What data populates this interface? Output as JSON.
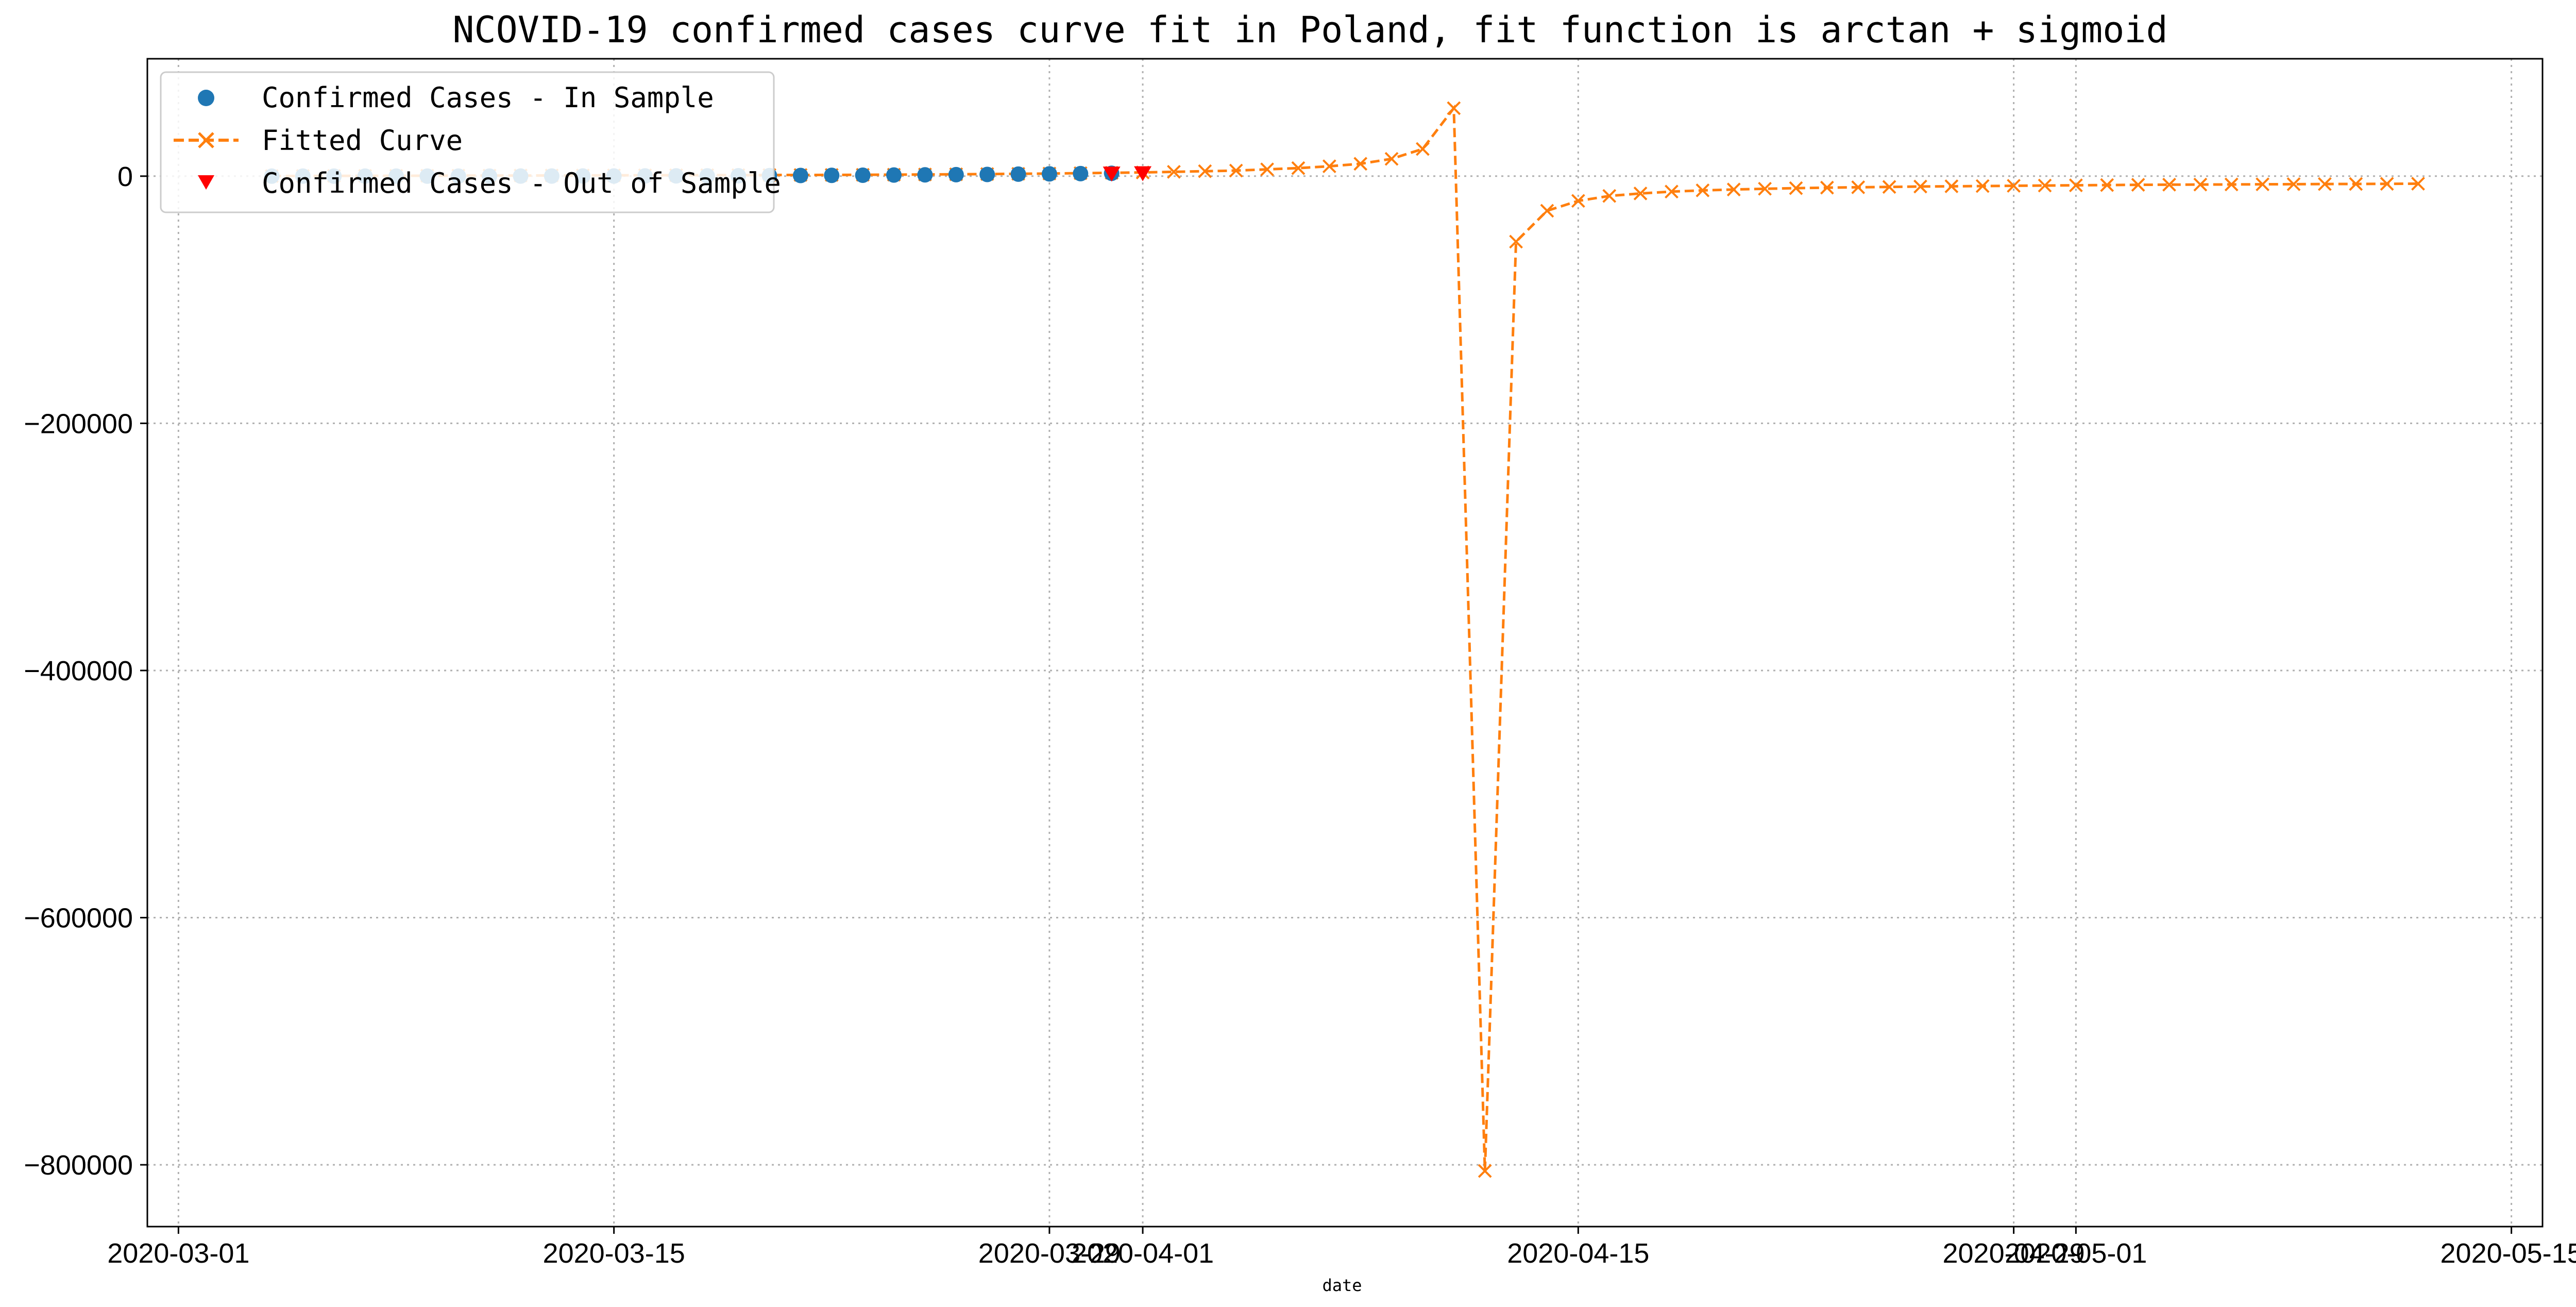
{
  "chart_data": {
    "type": "line",
    "title": "NCOVID-19 confirmed cases curve fit in Poland, fit function is arctan + sigmoid",
    "xlabel": "date",
    "ylabel": "",
    "xlim": [
      "2020-02-29",
      "2020-05-16"
    ],
    "ylim": [
      -850000,
      95000
    ],
    "x_ticks": [
      "2020-03-01",
      "2020-03-15",
      "2020-03-29",
      "2020-04-01",
      "2020-04-15",
      "2020-04-29",
      "2020-05-01",
      "2020-05-15"
    ],
    "y_ticks": [
      0,
      -200000,
      -400000,
      -600000,
      -800000
    ],
    "y_tick_labels": [
      "0",
      "−200000",
      "−400000",
      "−600000",
      "−800000"
    ],
    "grid": true,
    "legend": {
      "placement": "top-left",
      "entries": [
        "Confirmed Cases - In Sample",
        "Fitted Curve",
        "Confirmed Cases - Out of Sample"
      ]
    },
    "colors": {
      "in_sample": "#1f77b4",
      "fitted": "#ff7f0e",
      "out_of_sample": "#ff0000"
    },
    "series": [
      {
        "name": "Confirmed Cases - In Sample",
        "marker": "circle",
        "x": [
          "2020-03-04",
          "2020-03-05",
          "2020-03-06",
          "2020-03-07",
          "2020-03-08",
          "2020-03-09",
          "2020-03-10",
          "2020-03-11",
          "2020-03-12",
          "2020-03-13",
          "2020-03-14",
          "2020-03-15",
          "2020-03-16",
          "2020-03-17",
          "2020-03-18",
          "2020-03-19",
          "2020-03-20",
          "2020-03-21",
          "2020-03-22",
          "2020-03-23",
          "2020-03-24",
          "2020-03-25",
          "2020-03-26",
          "2020-03-27",
          "2020-03-28",
          "2020-03-29",
          "2020-03-30",
          "2020-03-31"
        ],
        "y": [
          1,
          5,
          5,
          11,
          16,
          17,
          22,
          31,
          51,
          68,
          104,
          125,
          177,
          238,
          251,
          355,
          425,
          536,
          634,
          749,
          901,
          1051,
          1221,
          1389,
          1638,
          1862,
          2055,
          2311
        ]
      },
      {
        "name": "Fitted Curve",
        "marker": "x",
        "x": [
          "2020-03-04",
          "2020-03-05",
          "2020-03-06",
          "2020-03-07",
          "2020-03-08",
          "2020-03-09",
          "2020-03-10",
          "2020-03-11",
          "2020-03-12",
          "2020-03-13",
          "2020-03-14",
          "2020-03-15",
          "2020-03-16",
          "2020-03-17",
          "2020-03-18",
          "2020-03-19",
          "2020-03-20",
          "2020-03-21",
          "2020-03-22",
          "2020-03-23",
          "2020-03-24",
          "2020-03-25",
          "2020-03-26",
          "2020-03-27",
          "2020-03-28",
          "2020-03-29",
          "2020-03-30",
          "2020-03-31",
          "2020-04-01",
          "2020-04-02",
          "2020-04-03",
          "2020-04-04",
          "2020-04-05",
          "2020-04-06",
          "2020-04-07",
          "2020-04-08",
          "2020-04-09",
          "2020-04-10",
          "2020-04-11",
          "2020-04-12",
          "2020-04-13",
          "2020-04-14",
          "2020-04-15",
          "2020-04-16",
          "2020-04-17",
          "2020-04-18",
          "2020-04-19",
          "2020-04-20",
          "2020-04-21",
          "2020-04-22",
          "2020-04-23",
          "2020-04-24",
          "2020-04-25",
          "2020-04-26",
          "2020-04-27",
          "2020-04-28",
          "2020-04-29",
          "2020-04-30",
          "2020-05-01",
          "2020-05-02",
          "2020-05-03",
          "2020-05-04",
          "2020-05-05",
          "2020-05-06",
          "2020-05-07",
          "2020-05-08",
          "2020-05-09",
          "2020-05-10",
          "2020-05-11",
          "2020-05-12"
        ],
        "y": [
          100,
          150,
          200,
          250,
          300,
          350,
          400,
          450,
          500,
          550,
          600,
          650,
          700,
          750,
          800,
          850,
          900,
          950,
          1000,
          1100,
          1200,
          1350,
          1500,
          1700,
          1900,
          2100,
          2400,
          2700,
          3000,
          3500,
          4000,
          4500,
          5500,
          6500,
          8000,
          10000,
          14000,
          22000,
          55000,
          -805000,
          -53000,
          -28000,
          -20000,
          -16000,
          -14000,
          -12500,
          -11500,
          -10800,
          -10200,
          -9700,
          -9300,
          -9000,
          -8700,
          -8400,
          -8200,
          -8000,
          -7800,
          -7600,
          -7400,
          -7200,
          -7000,
          -6900,
          -6800,
          -6700,
          -6600,
          -6500,
          -6400,
          -6300,
          -6200,
          -6100
        ]
      },
      {
        "name": "Confirmed Cases - Out of Sample",
        "marker": "triangle-down",
        "x": [
          "2020-03-31",
          "2020-04-01"
        ],
        "y": [
          2311,
          2554
        ]
      }
    ]
  }
}
